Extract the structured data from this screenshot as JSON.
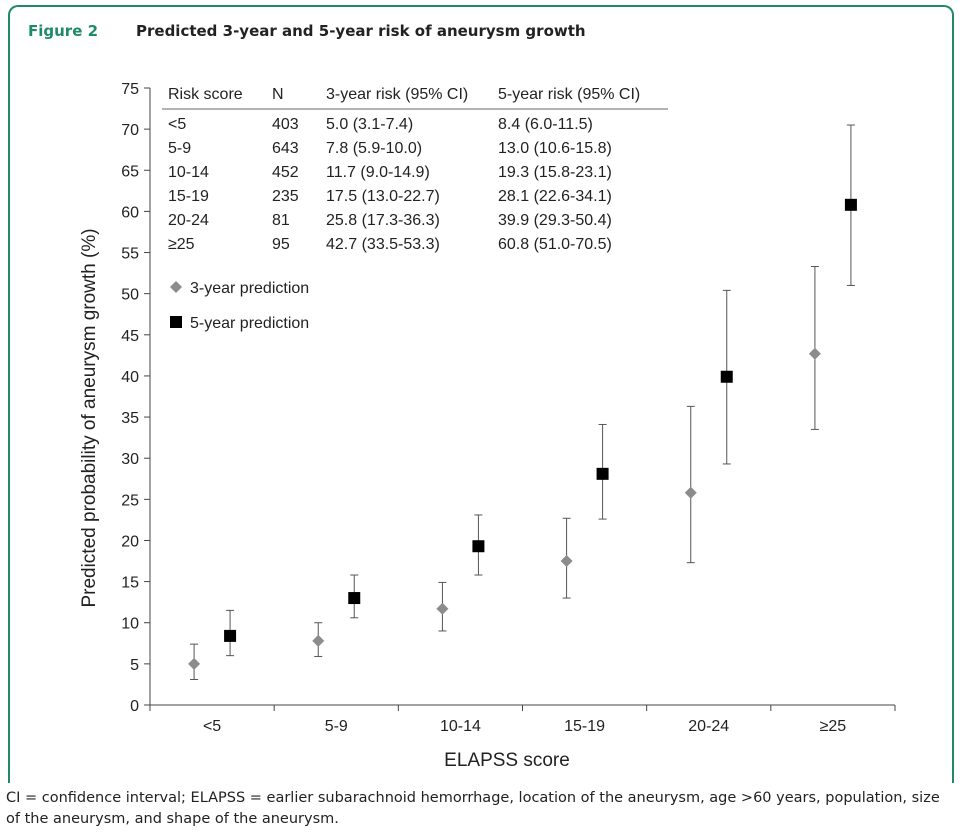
{
  "figure": {
    "label": "Figure 2",
    "title": "Predicted 3-year and 5-year risk of aneurysm growth"
  },
  "caption": "CI = confidence interval; ELAPSS = earlier subarachnoid hemorrhage, location of the aneurysm, age >60 years, population, size of the aneurysm, and shape of the aneurysm.",
  "chart_data": {
    "type": "scatter",
    "xlabel": "ELAPSS score",
    "ylabel": "Predicted probability of aneurysm growth (%)",
    "categories": [
      "<5",
      "5-9",
      "10-14",
      "15-19",
      "20-24",
      "≥25"
    ],
    "ylim": [
      0,
      75
    ],
    "yticks": [
      0,
      5,
      10,
      15,
      20,
      25,
      30,
      35,
      40,
      45,
      50,
      55,
      60,
      65,
      70,
      75
    ],
    "grid": false,
    "legend_position": "upper-left",
    "series": [
      {
        "name": "3-year prediction",
        "marker": "diamond",
        "color": "#8c8c8c",
        "values": [
          5.0,
          7.8,
          11.7,
          17.5,
          25.8,
          42.7
        ],
        "ci_low": [
          3.1,
          5.9,
          9.0,
          13.0,
          17.3,
          33.5
        ],
        "ci_high": [
          7.4,
          10.0,
          14.9,
          22.7,
          36.3,
          53.3
        ]
      },
      {
        "name": "5-year prediction",
        "marker": "square",
        "color": "#000000",
        "values": [
          8.4,
          13.0,
          19.3,
          28.1,
          39.9,
          60.8
        ],
        "ci_low": [
          6.0,
          10.6,
          15.8,
          22.6,
          29.3,
          51.0
        ],
        "ci_high": [
          11.5,
          15.8,
          23.1,
          34.1,
          50.4,
          70.5
        ]
      }
    ],
    "table": {
      "headers": [
        "Risk score",
        "N",
        "3-year risk (95% CI)",
        "5-year risk (95% CI)"
      ],
      "rows": [
        [
          "<5",
          "403",
          "5.0 (3.1-7.4)",
          "8.4 (6.0-11.5)"
        ],
        [
          "5-9",
          "643",
          "7.8 (5.9-10.0)",
          "13.0 (10.6-15.8)"
        ],
        [
          "10-14",
          "452",
          "11.7 (9.0-14.9)",
          "19.3 (15.8-23.1)"
        ],
        [
          "15-19",
          "235",
          "17.5 (13.0-22.7)",
          "28.1 (22.6-34.1)"
        ],
        [
          "20-24",
          "81",
          "25.8 (17.3-36.3)",
          "39.9 (29.3-50.4)"
        ],
        [
          "≥25",
          "95",
          "42.7 (33.5-53.3)",
          "60.8 (51.0-70.5)"
        ]
      ]
    }
  }
}
